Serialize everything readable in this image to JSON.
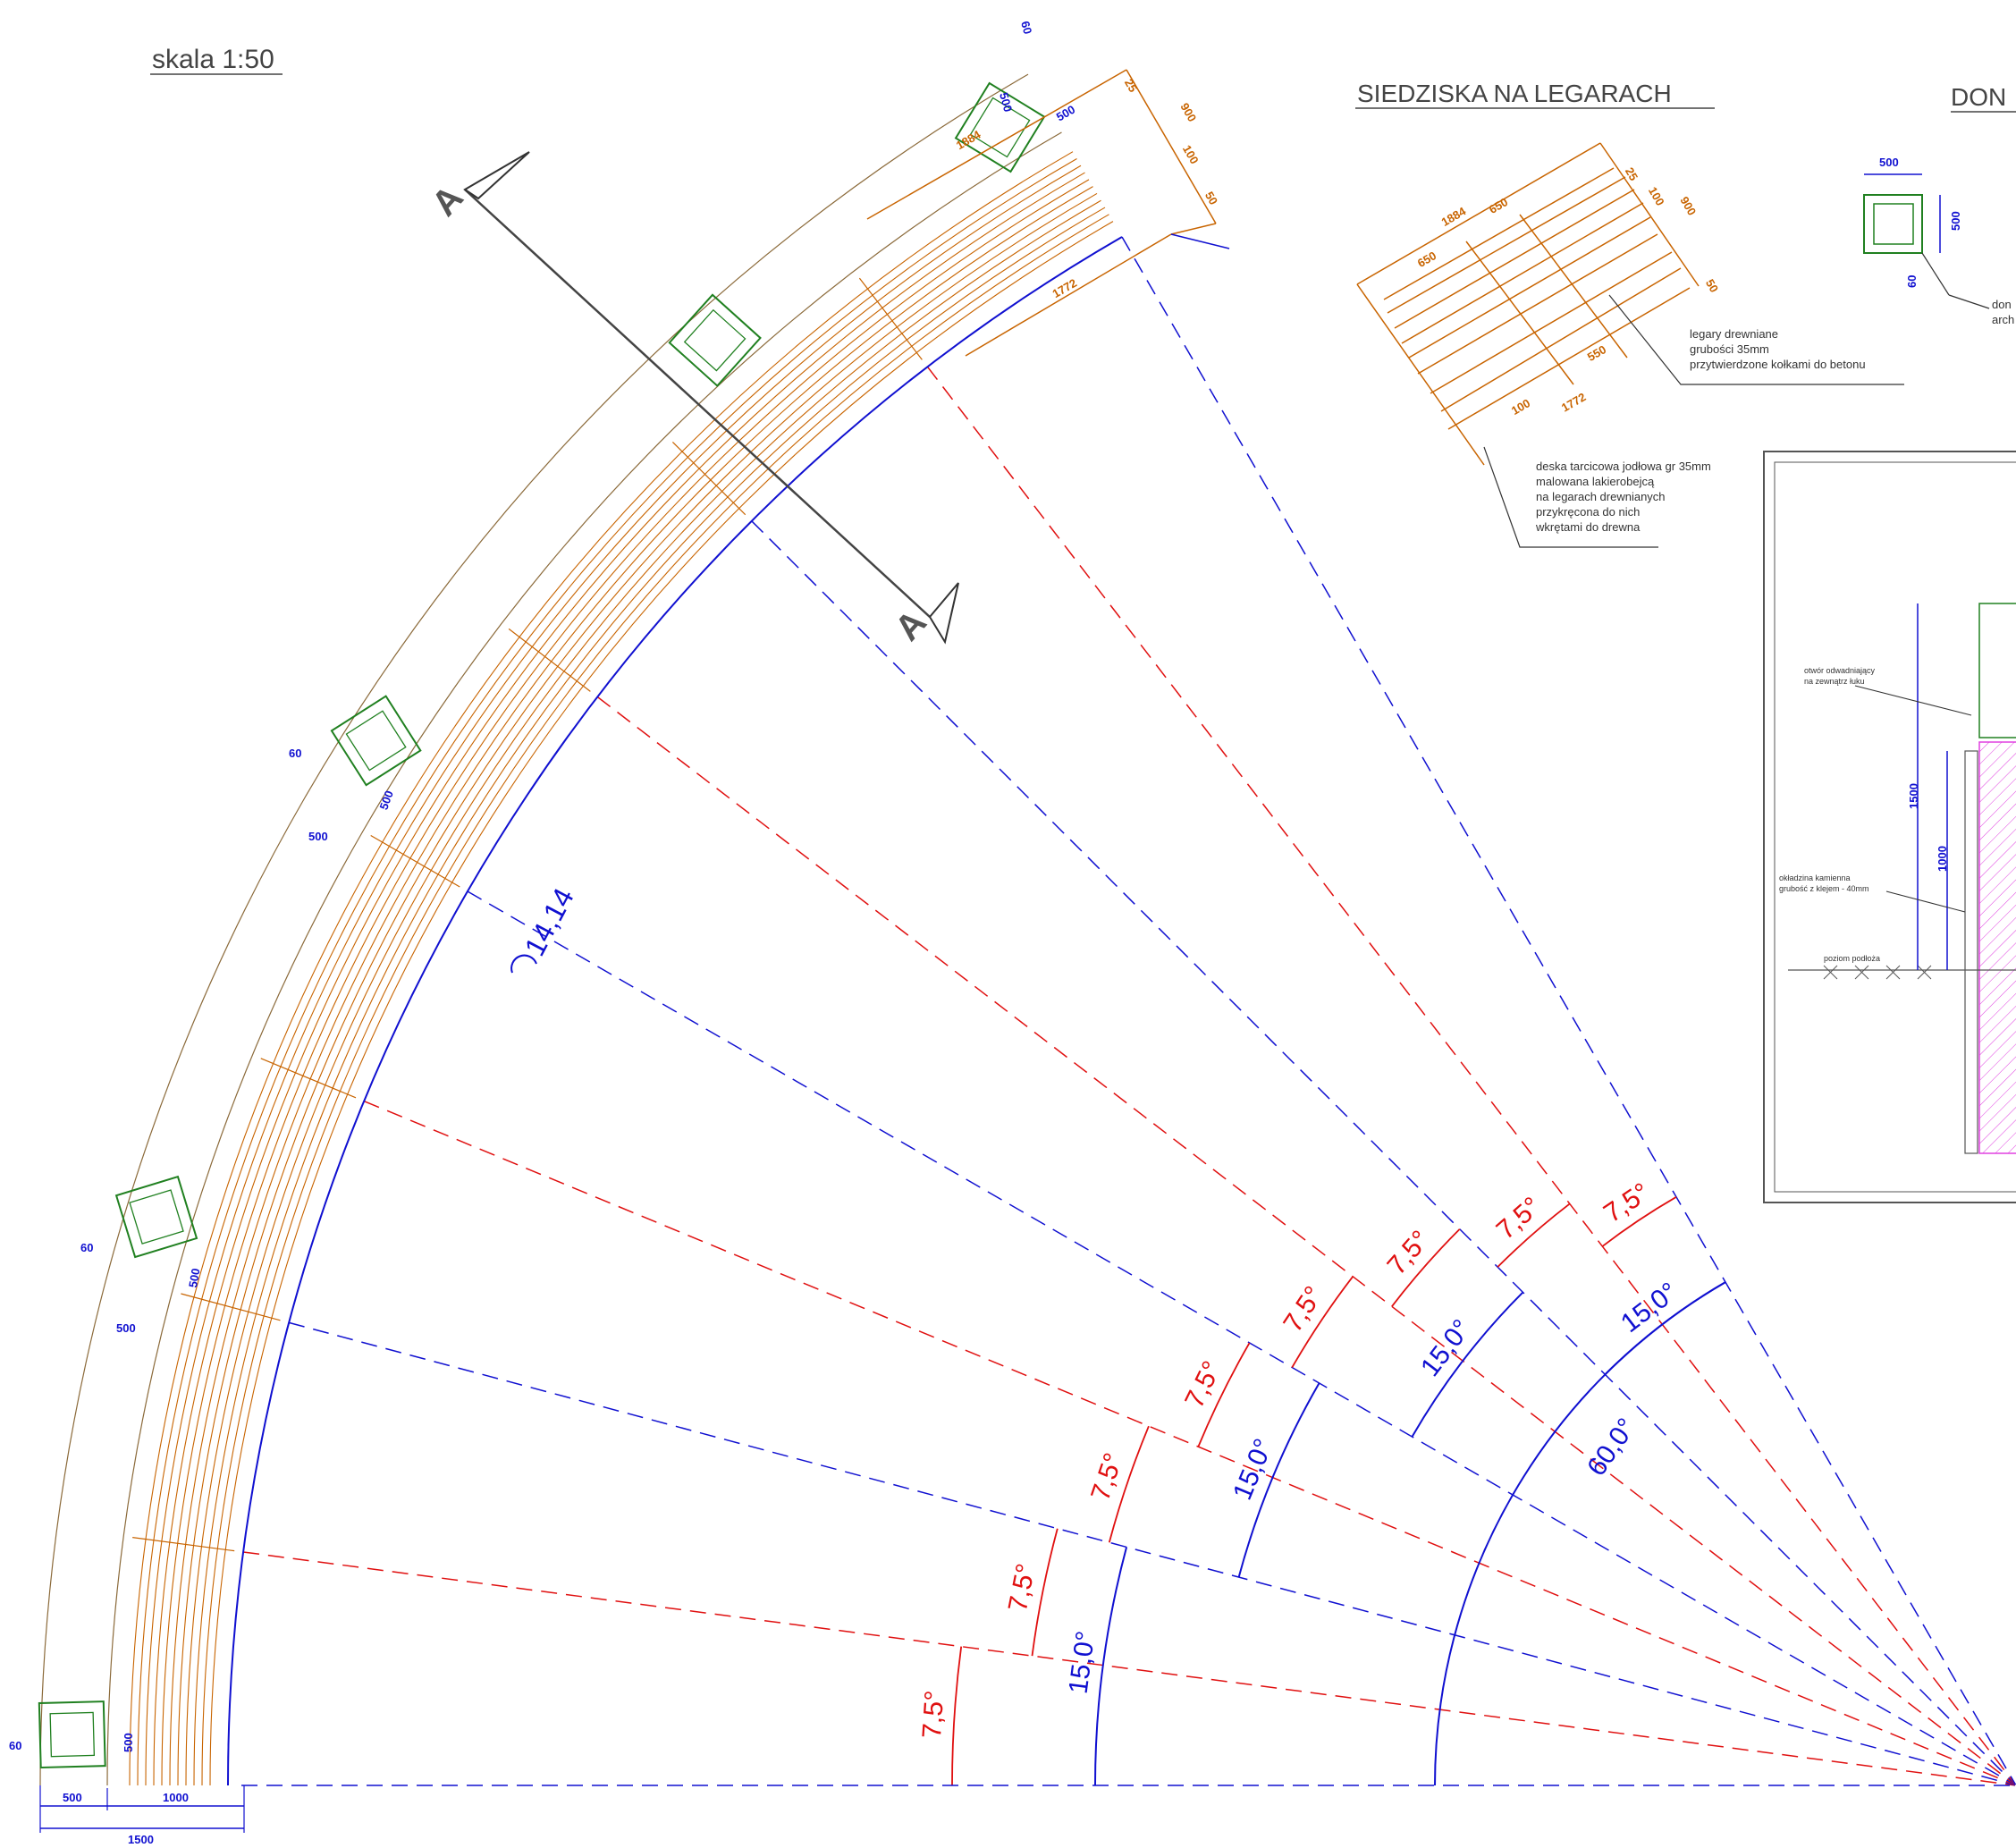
{
  "scale_label": "skala 1:50",
  "section_title": "SIEDZISKA NA LEGARACH",
  "section_title_2_partial": "DON",
  "section_marker": "A",
  "arc_length_label": "14,14",
  "plan_dims": {
    "outer_len": "1884",
    "inner_len": "1772",
    "seat_width": "900",
    "board_25": "25",
    "board_100": "100",
    "board_50": "50",
    "post_size": "500",
    "post_offset": "60",
    "base_500": "500",
    "base_1000": "1000",
    "base_1500": "1500"
  },
  "detail_dims": {
    "d1884": "1884",
    "d650a": "650",
    "d650b": "650",
    "d25": "25",
    "d100a": "100",
    "d900": "900",
    "d50": "50",
    "d550": "550",
    "d100b": "100",
    "d1772": "1772"
  },
  "notes": {
    "legary": [
      "legary drewniane",
      "grubości 35mm",
      "przytwierdzone kołkami do betonu"
    ],
    "deska": [
      "deska tarcicowa jodłowa gr 35mm",
      "malowana lakierobejcą",
      "na legarach drewnianych",
      "przykręcona do nich",
      "wkrętami do drewna"
    ],
    "otwor": [
      "otwór odwadniający",
      "na zewnątrz łuku"
    ],
    "okladzina": [
      "okładzina kamienna",
      "grubość z klejem - 40mm"
    ],
    "poziom": "poziom podłoża",
    "donica_partial": [
      "don",
      "arch"
    ]
  },
  "post_detail_dims": {
    "w": "500",
    "h": "500",
    "off": "60"
  },
  "section_dims": {
    "h1500": "1500",
    "h1000": "1000"
  },
  "angles": {
    "red": [
      "7,5°",
      "7,5°",
      "7,5°",
      "7,5°",
      "7,5°",
      "7,5°",
      "7,5°",
      "7,5°"
    ],
    "blue": [
      "15,0°",
      "15,0°",
      "15,0°",
      "15,0°"
    ],
    "big": "60,0°"
  },
  "colors": {
    "wood": "#c86400",
    "outline": "#8b6a3a",
    "post": "#208020",
    "dim_blue": "#1010d0",
    "axis_red": "#e01010",
    "hatch_magenta": "#e040e0"
  }
}
